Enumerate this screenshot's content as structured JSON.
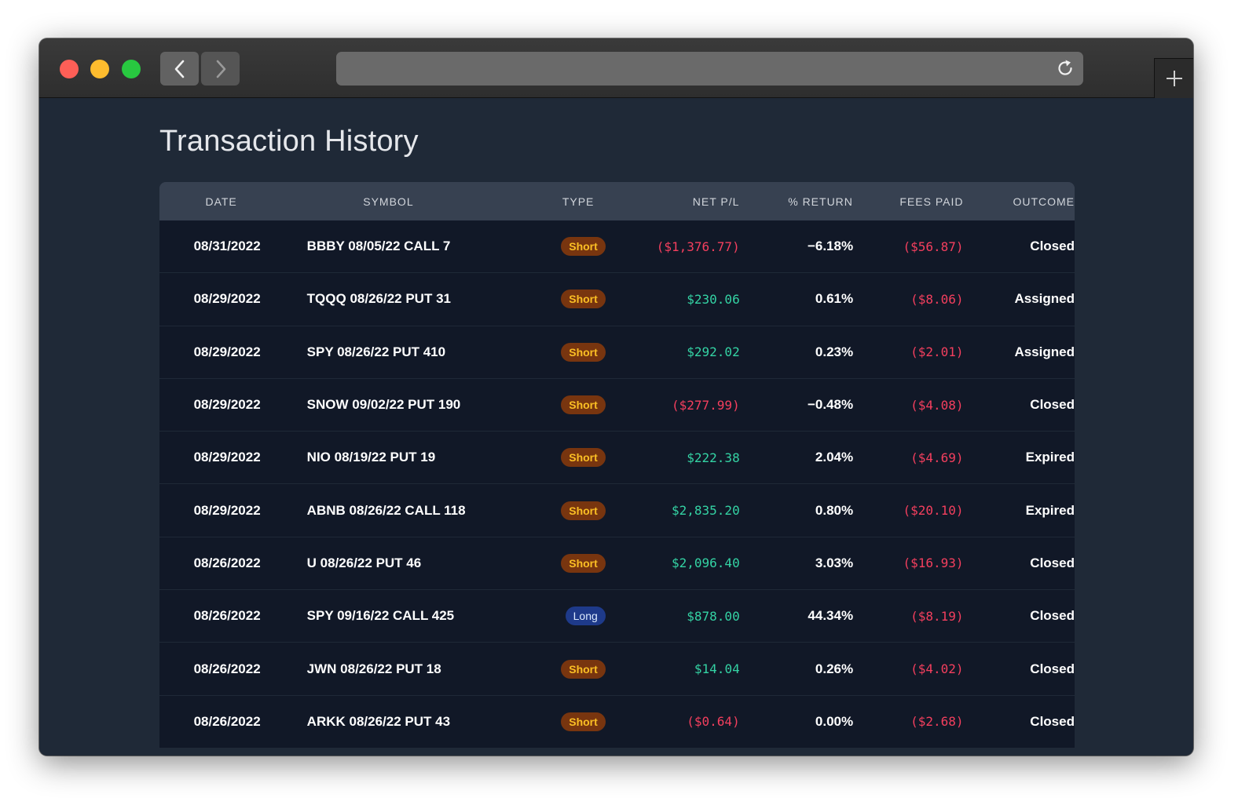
{
  "browser": {
    "back_icon": "chevron-left-icon",
    "forward_icon": "chevron-right-icon",
    "reload_icon": "reload-icon",
    "new_tab_icon": "plus-icon",
    "url": ""
  },
  "page": {
    "title": "Transaction History"
  },
  "table": {
    "headers": {
      "date": "DATE",
      "symbol": "SYMBOL",
      "type": "TYPE",
      "net_pl": "NET P/L",
      "pct_return": "% RETURN",
      "fees_paid": "FEES PAID",
      "outcome": "OUTCOME"
    },
    "rows": [
      {
        "date": "08/31/2022",
        "symbol": "BBBY 08/05/22 CALL 7",
        "type": "Short",
        "net_pl": "($1,376.77)",
        "pl_sign": "neg",
        "pct_return": "−6.18%",
        "fees_paid": "($56.87)",
        "outcome": "Closed"
      },
      {
        "date": "08/29/2022",
        "symbol": "TQQQ 08/26/22 PUT 31",
        "type": "Short",
        "net_pl": "$230.06",
        "pl_sign": "pos",
        "pct_return": "0.61%",
        "fees_paid": "($8.06)",
        "outcome": "Assigned"
      },
      {
        "date": "08/29/2022",
        "symbol": "SPY 08/26/22 PUT 410",
        "type": "Short",
        "net_pl": "$292.02",
        "pl_sign": "pos",
        "pct_return": "0.23%",
        "fees_paid": "($2.01)",
        "outcome": "Assigned"
      },
      {
        "date": "08/29/2022",
        "symbol": "SNOW 09/02/22 PUT 190",
        "type": "Short",
        "net_pl": "($277.99)",
        "pl_sign": "neg",
        "pct_return": "−0.48%",
        "fees_paid": "($4.08)",
        "outcome": "Closed"
      },
      {
        "date": "08/29/2022",
        "symbol": "NIO 08/19/22 PUT 19",
        "type": "Short",
        "net_pl": "$222.38",
        "pl_sign": "pos",
        "pct_return": "2.04%",
        "fees_paid": "($4.69)",
        "outcome": "Expired"
      },
      {
        "date": "08/29/2022",
        "symbol": "ABNB 08/26/22 CALL 118",
        "type": "Short",
        "net_pl": "$2,835.20",
        "pl_sign": "pos",
        "pct_return": "0.80%",
        "fees_paid": "($20.10)",
        "outcome": "Expired"
      },
      {
        "date": "08/26/2022",
        "symbol": "U 08/26/22 PUT 46",
        "type": "Short",
        "net_pl": "$2,096.40",
        "pl_sign": "pos",
        "pct_return": "3.03%",
        "fees_paid": "($16.93)",
        "outcome": "Closed"
      },
      {
        "date": "08/26/2022",
        "symbol": "SPY 09/16/22 CALL 425",
        "type": "Long",
        "net_pl": "$878.00",
        "pl_sign": "pos",
        "pct_return": "44.34%",
        "fees_paid": "($8.19)",
        "outcome": "Closed"
      },
      {
        "date": "08/26/2022",
        "symbol": "JWN 08/26/22 PUT 18",
        "type": "Short",
        "net_pl": "$14.04",
        "pl_sign": "pos",
        "pct_return": "0.26%",
        "fees_paid": "($4.02)",
        "outcome": "Closed"
      },
      {
        "date": "08/26/2022",
        "symbol": "ARKK 08/26/22 PUT 43",
        "type": "Short",
        "net_pl": "($0.64)",
        "pl_sign": "neg",
        "pct_return": "0.00%",
        "fees_paid": "($2.68)",
        "outcome": "Closed"
      }
    ]
  },
  "colors": {
    "positive": "#34d3a4",
    "negative": "#f43f5e",
    "short_badge": "#78350f",
    "long_badge": "#1e3a8a"
  }
}
